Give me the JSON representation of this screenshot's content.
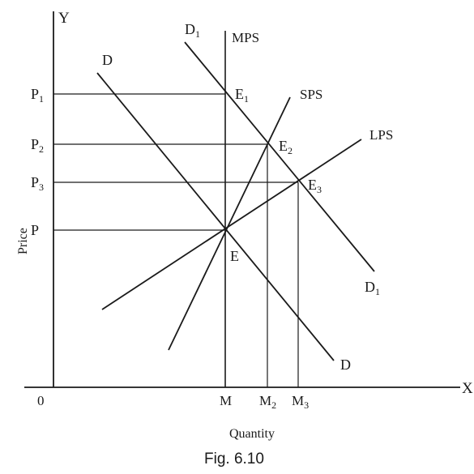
{
  "axes": {
    "y_label": "Y",
    "x_label": "X",
    "y_title": "Price",
    "x_title": "Quantity",
    "origin": "0"
  },
  "price_ticks": [
    "P",
    "P",
    "P",
    "P"
  ],
  "price_subscripts": [
    "1",
    "2",
    "3",
    ""
  ],
  "quantity_ticks": [
    "M",
    "M",
    "M"
  ],
  "quantity_subscripts": [
    "",
    "2",
    "3"
  ],
  "curves": {
    "d": "D",
    "d1": "D",
    "d1_sub": "1",
    "mps": "MPS",
    "sps": "SPS",
    "lps": "LPS"
  },
  "points": {
    "e": "E",
    "e1": "E",
    "e1_sub": "1",
    "e2": "E",
    "e2_sub": "2",
    "e3": "E",
    "e3_sub": "3"
  },
  "caption": "Fig. 6.10",
  "color": "#1a1a1a"
}
